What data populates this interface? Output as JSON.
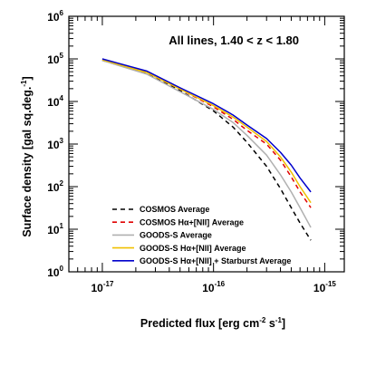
{
  "chart_data": {
    "type": "line",
    "annotation": "All lines, 1.40 < z < 1.80",
    "xlabel": {
      "main": "Predicted flux [erg cm",
      "sup1": "-2",
      "mid": " s",
      "sup2": "-1",
      "end": "]"
    },
    "ylabel": {
      "main": "Surface density [gal sq.deg.",
      "sup": "-1",
      "end": "]"
    },
    "xscale": "log",
    "yscale": "log",
    "xlim": [
      5e-18,
      1.5e-15
    ],
    "ylim": [
      1,
      1000000
    ],
    "grid": false,
    "legend_position": "bottom-left",
    "x_ticks": [
      {
        "base": "10",
        "exp": "-17",
        "value": 1e-17
      },
      {
        "base": "10",
        "exp": "-16",
        "value": 1e-16
      },
      {
        "base": "10",
        "exp": "-15",
        "value": 1e-15
      }
    ],
    "y_ticks": [
      {
        "base": "10",
        "exp": "0",
        "value": 1
      },
      {
        "base": "10",
        "exp": "1",
        "value": 10
      },
      {
        "base": "10",
        "exp": "2",
        "value": 100
      },
      {
        "base": "10",
        "exp": "3",
        "value": 1000
      },
      {
        "base": "10",
        "exp": "4",
        "value": 10000
      },
      {
        "base": "10",
        "exp": "5",
        "value": 100000
      },
      {
        "base": "10",
        "exp": "6",
        "value": 1000000
      }
    ],
    "series": [
      {
        "name": "COSMOS Average",
        "color": "#000000",
        "dash": "dashed",
        "x": [
          1e-17,
          2.5e-17,
          5e-17,
          1e-16,
          1.5e-16,
          2e-16,
          3e-16,
          4e-16,
          5e-16,
          6e-16,
          7.5e-16
        ],
        "y": [
          92000,
          46000,
          18000,
          6000,
          2500,
          1100,
          300,
          90,
          32,
          14,
          5.5
        ]
      },
      {
        "name": "COSMOS Hα+[NII] Average",
        "color": "#e00000",
        "dash": "dashed",
        "x": [
          1e-17,
          2.5e-17,
          5e-17,
          1e-16,
          1.5e-16,
          2e-16,
          3e-16,
          4e-16,
          5e-16,
          6e-16,
          7.5e-16
        ],
        "y": [
          95000,
          48000,
          19500,
          7500,
          3800,
          2100,
          1000,
          420,
          170,
          75,
          32
        ]
      },
      {
        "name": "GOODS-S Average",
        "color": "#b0b0b0",
        "dash": "solid",
        "x": [
          1e-17,
          2.5e-17,
          5e-17,
          1e-16,
          1.5e-16,
          2e-16,
          3e-16,
          4e-16,
          5e-16,
          6e-16,
          7.5e-16
        ],
        "y": [
          92000,
          44000,
          17000,
          6500,
          3200,
          1600,
          550,
          190,
          75,
          32,
          11
        ]
      },
      {
        "name": "GOODS-S Hα+[NII] Average",
        "color": "#f0c000",
        "dash": "solid",
        "x": [
          1e-17,
          2.5e-17,
          5e-17,
          1e-16,
          1.5e-16,
          2e-16,
          3e-16,
          4e-16,
          5e-16,
          6e-16,
          7.5e-16
        ],
        "y": [
          95000,
          48000,
          19500,
          8000,
          4300,
          2500,
          1150,
          500,
          220,
          100,
          42
        ]
      },
      {
        "name": "GOODS-S Hα+[NII] + Starburst Average",
        "color": "#0000cc",
        "dash": "solid",
        "x": [
          1e-17,
          2.5e-17,
          5e-17,
          1e-16,
          1.5e-16,
          2e-16,
          3e-16,
          4e-16,
          5e-16,
          6e-16,
          7.5e-16
        ],
        "y": [
          100000,
          52000,
          21000,
          8800,
          4800,
          2800,
          1350,
          640,
          320,
          160,
          75
        ]
      }
    ]
  }
}
